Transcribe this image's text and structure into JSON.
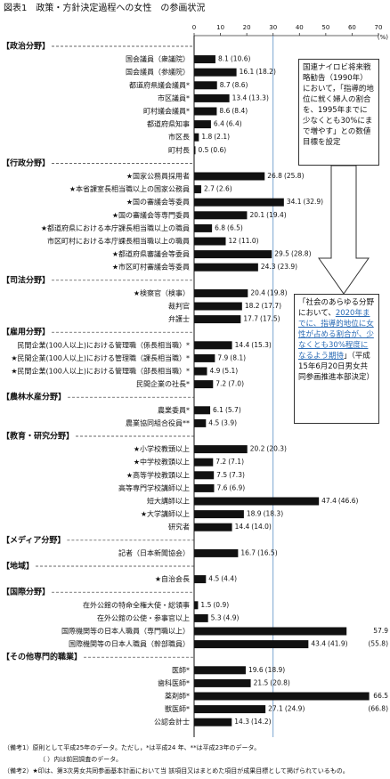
{
  "chart_data": {
    "type": "bar",
    "orientation": "horizontal",
    "title": "図表1　政策・方針決定過程への女性　の参画状況",
    "unit": "(%)",
    "xlim": [
      0,
      70
    ],
    "xticks": [
      0,
      10,
      20,
      30,
      40,
      50,
      60,
      70
    ],
    "reference_line": 30,
    "color": "#111111",
    "reference_color": "#5b8fc7",
    "groups": [
      {
        "name": "【政治分野】",
        "categories": [
          "国会議員（衆議院）",
          "国会議員（参議院）",
          "都道府県議会議員*",
          "市区議員*",
          "町村議会議員*",
          "都道府県知事",
          "市区長",
          "町村長"
        ],
        "values": [
          8.1,
          16.1,
          8.7,
          13.4,
          8.6,
          6.4,
          1.8,
          0.5
        ],
        "prev_labels": [
          "(10.6)",
          "(18.2)",
          "(8.6)",
          "(13.3)",
          "(8.4)",
          "(6.4)",
          "(2.1)",
          "(0.6)"
        ]
      },
      {
        "name": "【行政分野】",
        "categories": [
          "★国家公務員採用者",
          "★本省課室長相当職以上の国家公務員",
          "★国の審議会等委員",
          "★国の審議会等専門委員",
          "★都道府県における本庁課長相当職以上の職員",
          "市区町村における本庁課長相当職以上の職員",
          "★都道府県審議会等委員",
          "★市区町村審議会等委員"
        ],
        "values": [
          26.8,
          2.7,
          34.1,
          20.1,
          6.8,
          12.0,
          29.5,
          24.3
        ],
        "prev_labels": [
          "(25.8)",
          "(2.6)",
          "(32.9)",
          "(19.4)",
          "(6.5)",
          "(11.0)",
          "(28.8)",
          "(23.9)"
        ]
      },
      {
        "name": "【司法分野】",
        "categories": [
          "★検察官（検事）",
          "裁判官",
          "弁護士"
        ],
        "values": [
          20.4,
          18.2,
          17.7
        ],
        "prev_labels": [
          "(19.8)",
          "(17.7)",
          "(17.5)"
        ]
      },
      {
        "name": "【雇用分野】",
        "categories": [
          "民間企業(100人以上)における管理職（係長相当職）*",
          "★民間企業(100人以上)における管理職（課長相当職）*",
          "★民間企業(100人以上)における管理職（部長相当職）*",
          "民間企業の社長*"
        ],
        "values": [
          14.4,
          7.9,
          4.9,
          7.2
        ],
        "prev_labels": [
          "(15.3)",
          "(8.1)",
          "(5.1)",
          "(7.0)"
        ]
      },
      {
        "name": "【農林水産分野】",
        "categories": [
          "農業委員*",
          "農業協同組合役員**"
        ],
        "values": [
          6.1,
          4.5
        ],
        "prev_labels": [
          "(5.7)",
          "(3.9)"
        ]
      },
      {
        "name": "【教育・研究分野】",
        "categories": [
          "★小学校教頭以上",
          "★中学校教頭以上",
          "★高等学校教頭以上",
          "高等専門学校講師以上",
          "短大講師以上",
          "★大学講師以上",
          "研究者"
        ],
        "values": [
          20.2,
          7.2,
          7.5,
          7.6,
          47.4,
          18.9,
          14.4
        ],
        "prev_labels": [
          "(20.3)",
          "(7.1)",
          "(7.3)",
          "(6.9)",
          "(46.6)",
          "(18.3)",
          "(14.0)"
        ]
      },
      {
        "name": "【メディア分野】",
        "categories": [
          "記者（日本新聞協会）"
        ],
        "values": [
          16.7
        ],
        "prev_labels": [
          "(16.5)"
        ]
      },
      {
        "name": "【地域】",
        "categories": [
          "★自治会長"
        ],
        "values": [
          4.5
        ],
        "prev_labels": [
          "(4.4)"
        ]
      },
      {
        "name": "【国際分野】",
        "categories": [
          "在外公館の特命全権大使・総領事",
          "在外公館の公使・参事官以上",
          "国際機関等の日本人職員（専門職以上）",
          "国際機関等の日本人職員（幹部職員）"
        ],
        "values": [
          1.5,
          5.3,
          57.9,
          43.4
        ],
        "prev_labels": [
          "(0.9)",
          "(4.9)",
          "(55.8)",
          "(41.9)"
        ]
      },
      {
        "name": "【その他専門的職業】",
        "categories": [
          "医師*",
          "歯科医師*",
          "薬剤師*",
          "獣医師*",
          "公認会計士"
        ],
        "values": [
          19.6,
          21.5,
          66.5,
          27.1,
          14.3
        ],
        "prev_labels": [
          "(18.9)",
          "(20.8)",
          "(66.8)",
          "(24.9)",
          "(14.2)"
        ]
      }
    ],
    "annotations": [
      {
        "parts": [
          "国連ナイロビ将来戦略勧告（1990年）において，「指導的地位に就く婦人の割合を、1995年までに少なくとも30%にまで増やす」との数値目標を設定"
        ]
      },
      {
        "parts": [
          "「社会のあらゆる分野において、",
          "2020年までに、指導的地位に女性が占める割合が、少なくとも30%程度になるよう期待",
          "」（平成15年6月20日男女共同参画推進本部決定）"
        ]
      }
    ],
    "notes": [
      "（備考1）原則として平成25年のデータ。ただし，*は平成24 年、**は平成23年のデータ。",
      "（ ）内は前回調査のデータ。",
      "（備考2）★印は、第3次男女共同参画基本計画において当 該項目又はまとめた項目が成果目標として掲げられているもの。"
    ]
  }
}
